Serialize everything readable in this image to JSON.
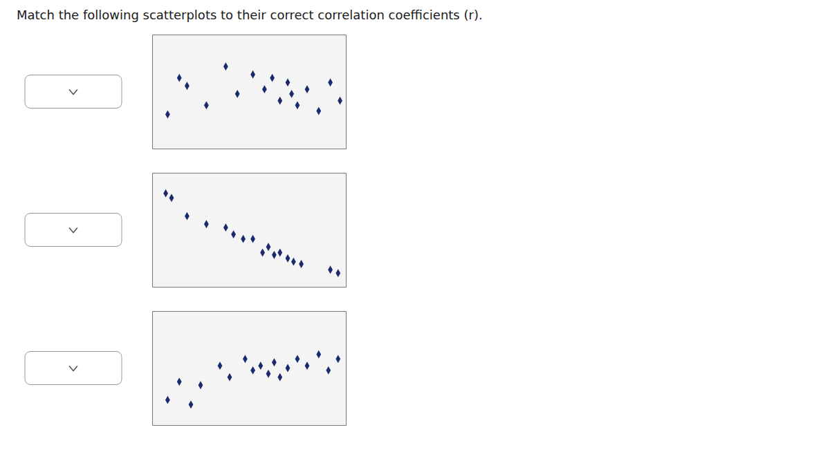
{
  "chart_data": [
    {
      "type": "scatter",
      "title": "Match the following scatterplots to their correct correlation coefficients (r).",
      "x": [
        0.08,
        0.14,
        0.18,
        0.28,
        0.38,
        0.44,
        0.52,
        0.58,
        0.62,
        0.66,
        0.7,
        0.72,
        0.75,
        0.8,
        0.86,
        0.92,
        0.97
      ],
      "values": [
        0.3,
        0.62,
        0.55,
        0.38,
        0.72,
        0.48,
        0.65,
        0.52,
        0.62,
        0.42,
        0.58,
        0.48,
        0.38,
        0.52,
        0.33,
        0.58,
        0.42
      ],
      "color": "#1a2a6c",
      "marker": "diamond",
      "xlim": [
        0,
        1
      ],
      "ylim": [
        0,
        1
      ],
      "tick_labels": false,
      "grid": false
    },
    {
      "type": "scatter",
      "x": [
        0.07,
        0.1,
        0.18,
        0.28,
        0.38,
        0.42,
        0.47,
        0.52,
        0.57,
        0.6,
        0.63,
        0.66,
        0.7,
        0.73,
        0.77,
        0.92,
        0.96
      ],
      "values": [
        0.82,
        0.78,
        0.62,
        0.55,
        0.52,
        0.46,
        0.42,
        0.42,
        0.3,
        0.35,
        0.28,
        0.3,
        0.25,
        0.22,
        0.2,
        0.15,
        0.12
      ],
      "color": "#1a2a6c",
      "marker": "diamond",
      "xlim": [
        0,
        1
      ],
      "ylim": [
        0,
        1
      ],
      "tick_labels": false,
      "grid": false
    },
    {
      "type": "scatter",
      "x": [
        0.08,
        0.14,
        0.2,
        0.25,
        0.35,
        0.4,
        0.48,
        0.52,
        0.56,
        0.6,
        0.63,
        0.66,
        0.7,
        0.75,
        0.8,
        0.86,
        0.91,
        0.96
      ],
      "values": [
        0.22,
        0.38,
        0.18,
        0.35,
        0.52,
        0.42,
        0.58,
        0.48,
        0.52,
        0.45,
        0.55,
        0.42,
        0.5,
        0.58,
        0.52,
        0.62,
        0.48,
        0.58
      ],
      "color": "#1a2a6c",
      "marker": "diamond",
      "xlim": [
        0,
        1
      ],
      "ylim": [
        0,
        1
      ],
      "tick_labels": false,
      "grid": false
    }
  ]
}
